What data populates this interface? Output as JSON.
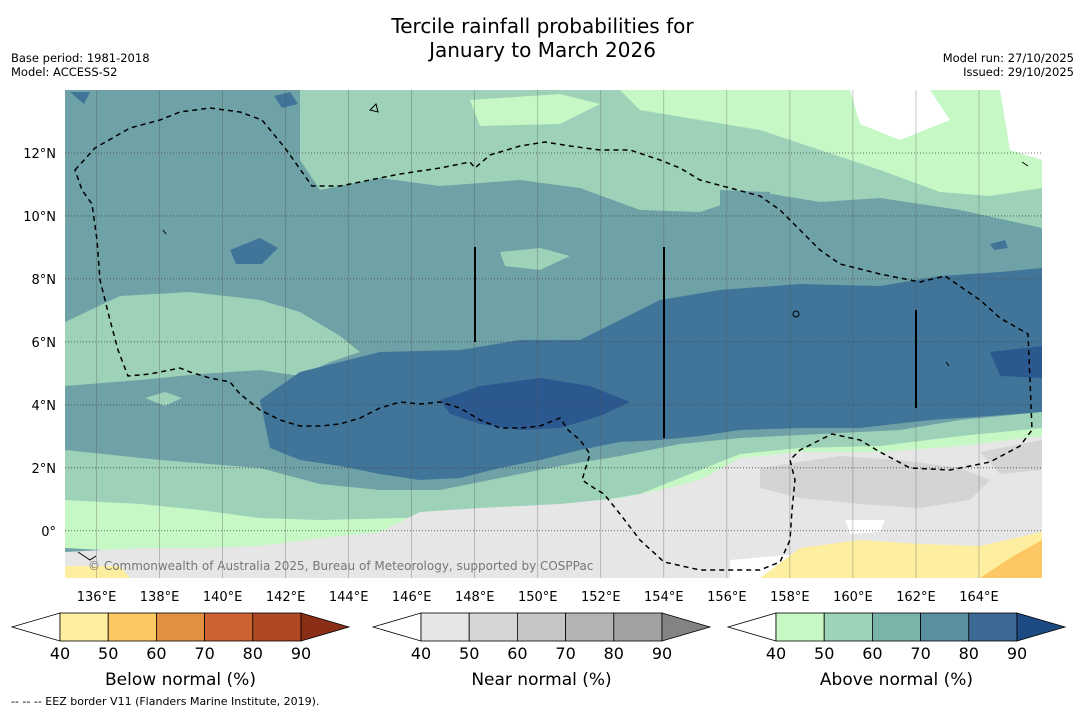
{
  "title_line1": "Tercile rainfall probabilities for",
  "title_line2": "January to March 2026",
  "base_period": "Base period: 1981-2018",
  "model": "Model: ACCESS-S2",
  "model_run": "Model run: 27/10/2025",
  "issued": "Issued: 29/10/2025",
  "copyright": "© Commonwealth of Australia 2025, Bureau of Meteorology, supported by COSPPac",
  "footnote": "--  --  -- EEZ border V11 (Flanders Marine Institute, 2019).",
  "map": {
    "lon_range": [
      135,
      166
    ],
    "lat_range": [
      -1.5,
      14
    ],
    "lon_ticks": [
      136,
      138,
      140,
      142,
      144,
      146,
      148,
      150,
      152,
      154,
      156,
      158,
      160,
      162,
      164
    ],
    "lon_labels": [
      "136°E",
      "138°E",
      "140°E",
      "142°E",
      "144°E",
      "146°E",
      "148°E",
      "150°E",
      "152°E",
      "154°E",
      "156°E",
      "158°E",
      "160°E",
      "162°E",
      "164°E"
    ],
    "lat_ticks": [
      0,
      2,
      4,
      6,
      8,
      10,
      12
    ],
    "lat_labels": [
      "0°",
      "2°N",
      "4°N",
      "6°N",
      "8°N",
      "10°N",
      "12°N"
    ]
  },
  "colorbars": [
    {
      "label": "Below normal (%)",
      "ticks": [
        "40",
        "50",
        "60",
        "70",
        "80",
        "90"
      ],
      "colors": [
        "#ffffff",
        "#fdeea0",
        "#fdc863",
        "#e09142",
        "#cd6332",
        "#b04824",
        "#8a2e18"
      ]
    },
    {
      "label": "Near normal (%)",
      "ticks": [
        "40",
        "50",
        "60",
        "70",
        "80",
        "90"
      ],
      "colors": [
        "#ffffff",
        "#e6e6e6",
        "#d6d6d6",
        "#c6c6c6",
        "#b3b3b3",
        "#a1a1a1",
        "#838383"
      ]
    },
    {
      "label": "Above normal (%)",
      "ticks": [
        "40",
        "50",
        "60",
        "70",
        "80",
        "90"
      ],
      "colors": [
        "#ffffff",
        "#c6f8c6",
        "#9dd3b8",
        "#7ab3a8",
        "#5a8fa2",
        "#3c6996",
        "#1e4a84"
      ]
    }
  ]
}
